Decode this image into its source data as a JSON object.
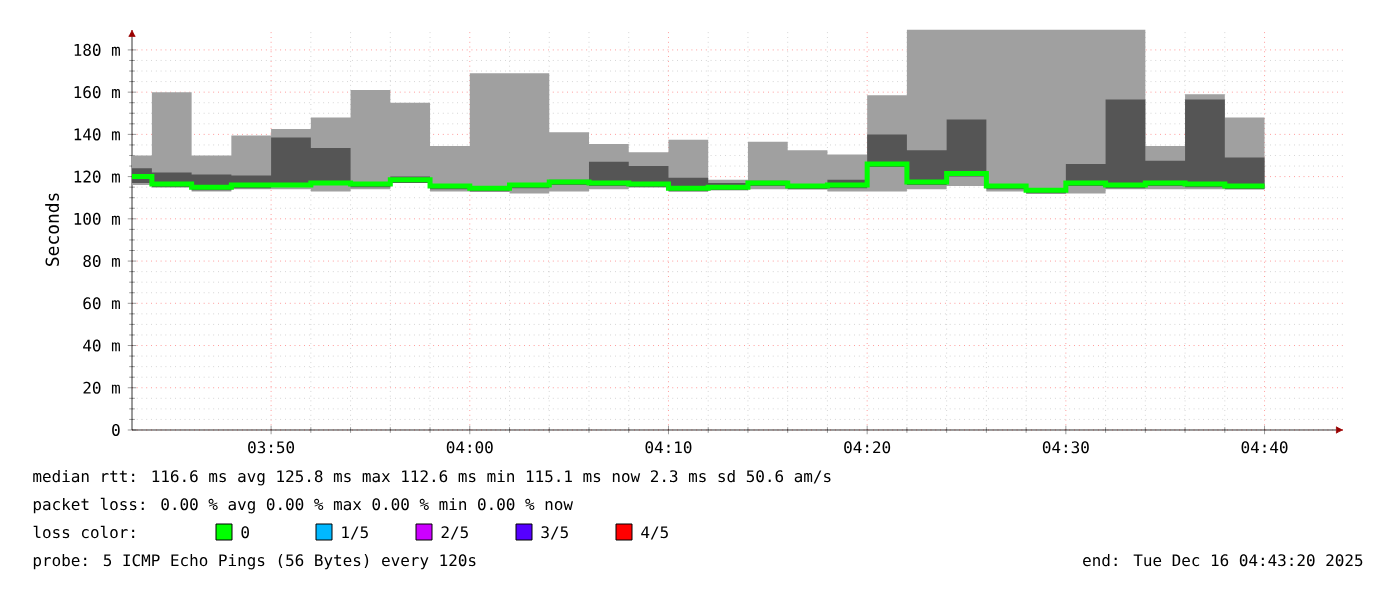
{
  "chart_data": {
    "type": "step",
    "ylabel": "Seconds",
    "legend_title": "loss color:",
    "legend": "bottom",
    "grid": true,
    "x": [
      "2025-12-16T03:43",
      "2025-12-16T03:44",
      "2025-12-16T03:46",
      "2025-12-16T03:48",
      "2025-12-16T03:50",
      "2025-12-16T03:52",
      "2025-12-16T03:54",
      "2025-12-16T03:56",
      "2025-12-16T03:58",
      "2025-12-16T04:00",
      "2025-12-16T04:02",
      "2025-12-16T04:04",
      "2025-12-16T04:06",
      "2025-12-16T04:08",
      "2025-12-16T04:10",
      "2025-12-16T04:12",
      "2025-12-16T04:14",
      "2025-12-16T04:16",
      "2025-12-16T04:18",
      "2025-12-16T04:20",
      "2025-12-16T04:22",
      "2025-12-16T04:24",
      "2025-12-16T04:26",
      "2025-12-16T04:28",
      "2025-12-16T04:30",
      "2025-12-16T04:32",
      "2025-12-16T04:34",
      "2025-12-16T04:36",
      "2025-12-16T04:38",
      "2025-12-16T04:40"
    ],
    "xlim": [
      "2025-12-16T03:43",
      "2025-12-16T04:44"
    ],
    "xticks": [
      {
        "value": "2025-12-16T03:50",
        "label": "03:50"
      },
      {
        "value": "2025-12-16T04:00",
        "label": "04:00"
      },
      {
        "value": "2025-12-16T04:10",
        "label": "04:10"
      },
      {
        "value": "2025-12-16T04:20",
        "label": "04:20"
      },
      {
        "value": "2025-12-16T04:30",
        "label": "04:30"
      },
      {
        "value": "2025-12-16T04:40",
        "label": "04:40"
      }
    ],
    "ylim": [
      0,
      190
    ],
    "yticks": [
      0,
      {
        "value": 20,
        "label": "20 m"
      },
      {
        "value": 40,
        "label": "40 m"
      },
      {
        "value": 60,
        "label": "60 m"
      },
      {
        "value": 80,
        "label": "80 m"
      },
      {
        "value": 100,
        "label": "100 m"
      },
      {
        "value": 120,
        "label": "120 m"
      },
      {
        "value": 140,
        "label": "140 m"
      },
      {
        "value": 160,
        "label": "160 m"
      },
      {
        "value": 180,
        "label": "180 m"
      }
    ],
    "series": [
      {
        "color": "#a0a0a0",
        "values": [
          null,
          null,
          null,
          null,
          null,
          null,
          null,
          null,
          null,
          null,
          null,
          null,
          null,
          null,
          null,
          null,
          null,
          null,
          null,
          null,
          null,
          null,
          null,
          null,
          null,
          null,
          null,
          null,
          null,
          null
        ],
        "lower": [
          116,
          115,
          113,
          114,
          114,
          113,
          114,
          117.5,
          113,
          113,
          112,
          113,
          114,
          115,
          113.5,
          114,
          114,
          114,
          113,
          113,
          114,
          115.5,
          113,
          112,
          112,
          114,
          114,
          114,
          114,
          114
        ],
        "upper": [
          130,
          160,
          130,
          139.5,
          142.5,
          148,
          161,
          155,
          134.5,
          169,
          169,
          141,
          135.5,
          131.5,
          137.5,
          118.5,
          136.5,
          132.5,
          130.5,
          158.5,
          189.5,
          189.5,
          189.5,
          189.5,
          189.5,
          189.5,
          134.5,
          159,
          148,
          148
        ]
      },
      {
        "color": "#555555",
        "values": [
          null,
          null,
          null,
          null,
          null,
          null,
          null,
          null,
          null,
          null,
          null,
          null,
          null,
          null,
          null,
          null,
          null,
          null,
          null,
          null,
          null,
          null,
          null,
          null,
          null,
          null,
          null,
          null,
          null,
          null
        ],
        "lower": [
          117,
          115,
          113.5,
          114.5,
          115.5,
          116.5,
          115,
          117,
          114,
          113,
          114.5,
          116,
          115.5,
          115,
          113,
          113.5,
          115.5,
          114,
          114.5,
          124.5,
          116,
          120,
          114,
          112,
          115.5,
          114.5,
          115.5,
          115,
          114,
          114
        ],
        "upper": [
          124,
          122,
          121,
          120.5,
          138.5,
          133.5,
          117.5,
          120,
          116.5,
          115,
          117,
          118.5,
          127,
          125,
          119.5,
          117,
          118,
          116,
          118.5,
          140,
          132.5,
          147,
          116,
          114.5,
          126,
          156.5,
          127.5,
          156.5,
          129,
          129
        ]
      },
      {
        "name": "0",
        "color": "#00ff00",
        "values": [
          120,
          116.5,
          115,
          116,
          116,
          117,
          116.5,
          118.5,
          115.5,
          114.5,
          116,
          117.5,
          117,
          116.5,
          114.5,
          115,
          117,
          115.5,
          116,
          126,
          117.5,
          121.5,
          115.5,
          113.5,
          117,
          116,
          117,
          116.5,
          115.5,
          115.5
        ]
      },
      {
        "name": "1/5",
        "color": "#00b8ff",
        "values": [
          null,
          null,
          null,
          null,
          null,
          null,
          null,
          null,
          null,
          null,
          null,
          null,
          null,
          null,
          null,
          null,
          null,
          null,
          null,
          null,
          null,
          null,
          null,
          null,
          null,
          null,
          null,
          null,
          null,
          null
        ]
      },
      {
        "name": "2/5",
        "color": "#cc00ff",
        "values": [
          null,
          null,
          null,
          null,
          null,
          null,
          null,
          null,
          null,
          null,
          null,
          null,
          null,
          null,
          null,
          null,
          null,
          null,
          null,
          null,
          null,
          null,
          null,
          null,
          null,
          null,
          null,
          null,
          null,
          null
        ]
      },
      {
        "name": "3/5",
        "color": "#5500ff",
        "values": [
          null,
          null,
          null,
          null,
          null,
          null,
          null,
          null,
          null,
          null,
          null,
          null,
          null,
          null,
          null,
          null,
          null,
          null,
          null,
          null,
          null,
          null,
          null,
          null,
          null,
          null,
          null,
          null,
          null,
          null
        ]
      },
      {
        "name": "4/5",
        "color": "#ff0000",
        "values": [
          null,
          null,
          null,
          null,
          null,
          null,
          null,
          null,
          null,
          null,
          null,
          null,
          null,
          null,
          null,
          null,
          null,
          null,
          null,
          null,
          null,
          null,
          null,
          null,
          null,
          null,
          null,
          null,
          null,
          null
        ]
      }
    ],
    "annotations": [
      "median rtt: 116.6 ms avg 125.8 ms max 112.6 ms min 115.1 ms now 2.3 ms sd 50.6 am/s",
      "packet loss: 0.00 % avg 0.00 % max 0.00 % min 0.00 % now",
      "probe: 5 ICMP Echo Pings (56 Bytes) every 120s",
      "end: Tue Dec 16 04:43:20 2025"
    ]
  }
}
